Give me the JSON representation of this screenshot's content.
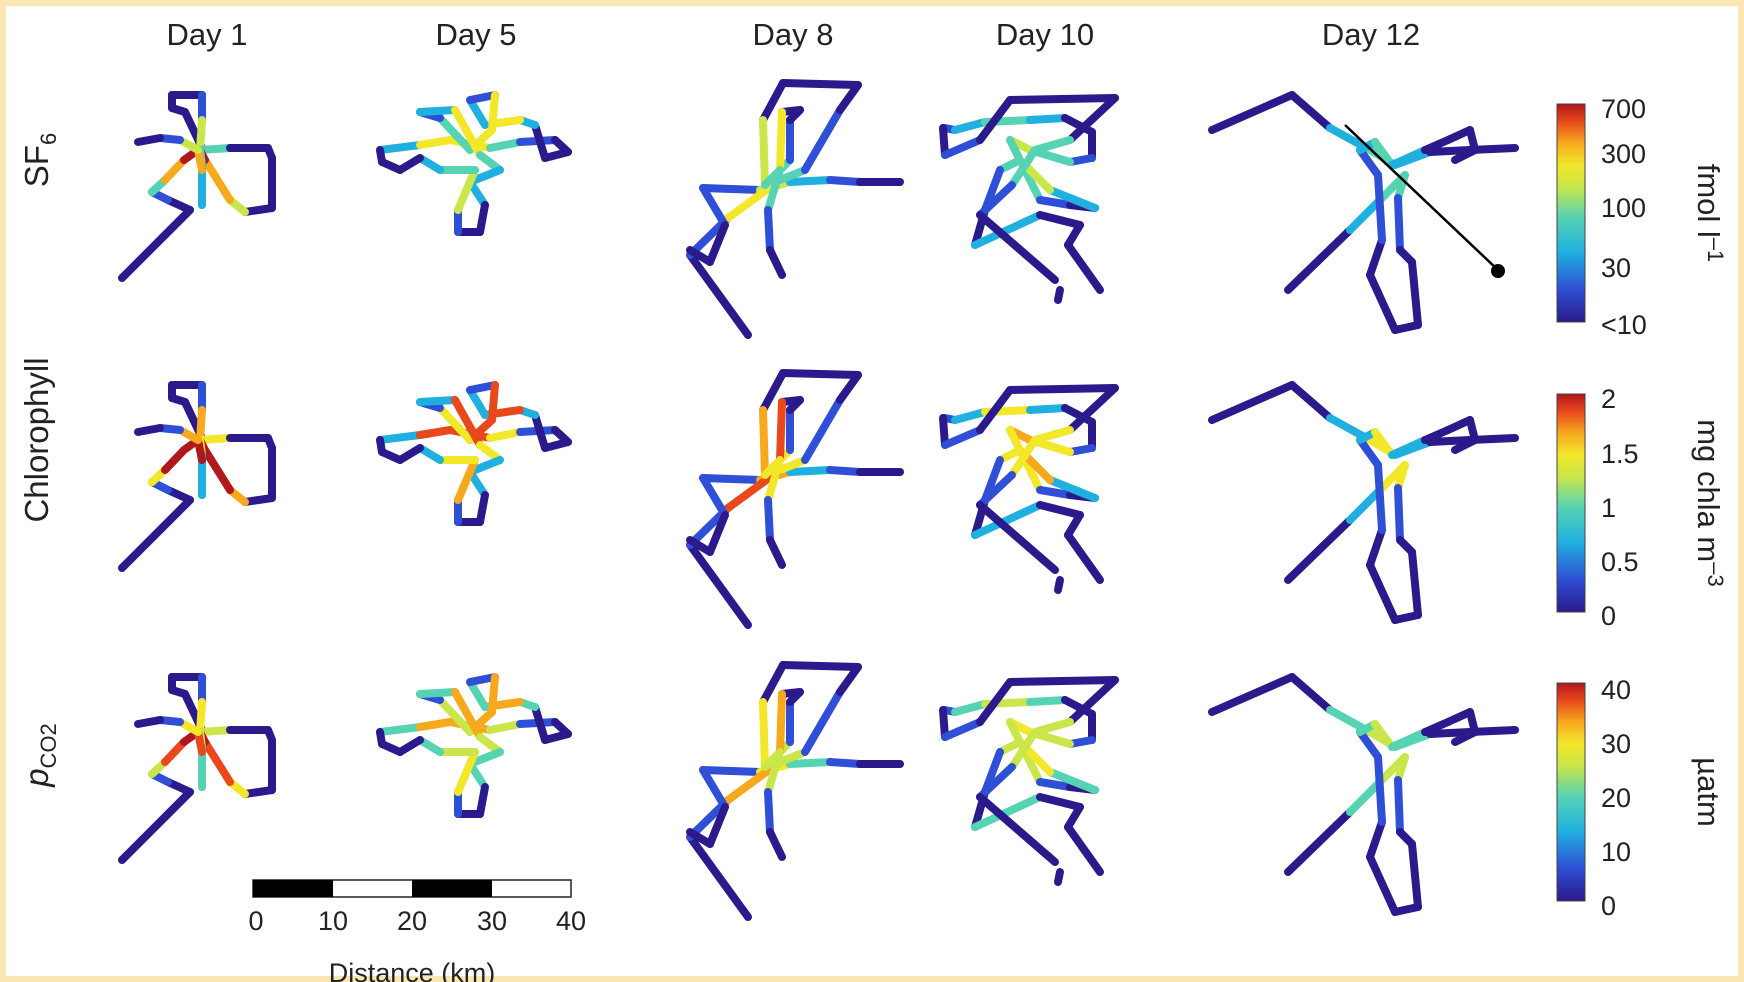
{
  "days": [
    "Day 1",
    "Day 5",
    "Day 8",
    "Day 10",
    "Day 12"
  ],
  "rows": [
    {
      "label": "SF",
      "label_sub": "6",
      "unit": "fmol l",
      "unit_sup": "–1",
      "colorbar_ticks": [
        "700",
        "300",
        "100",
        "30",
        "<10"
      ]
    },
    {
      "label": "Chlorophyll",
      "label_sub": "",
      "unit": "mg chla m",
      "unit_sup": "–3",
      "colorbar_ticks": [
        "2",
        "1.5",
        "1",
        "0.5",
        "0"
      ]
    },
    {
      "label": "p",
      "label_sub": "CO2",
      "unit": "µatm",
      "unit_sup": "",
      "colorbar_ticks": [
        "40",
        "30",
        "20",
        "10",
        "0"
      ]
    }
  ],
  "scalebar": {
    "ticks": [
      "0",
      "10",
      "20",
      "30",
      "40"
    ],
    "label": "Distance (km)"
  },
  "colormap": [
    "#2a1a8c",
    "#2f4fd6",
    "#1fb0e0",
    "#56d3b3",
    "#c9e64a",
    "#f3e72a",
    "#f7a91e",
    "#e8481b",
    "#b0181c"
  ]
}
